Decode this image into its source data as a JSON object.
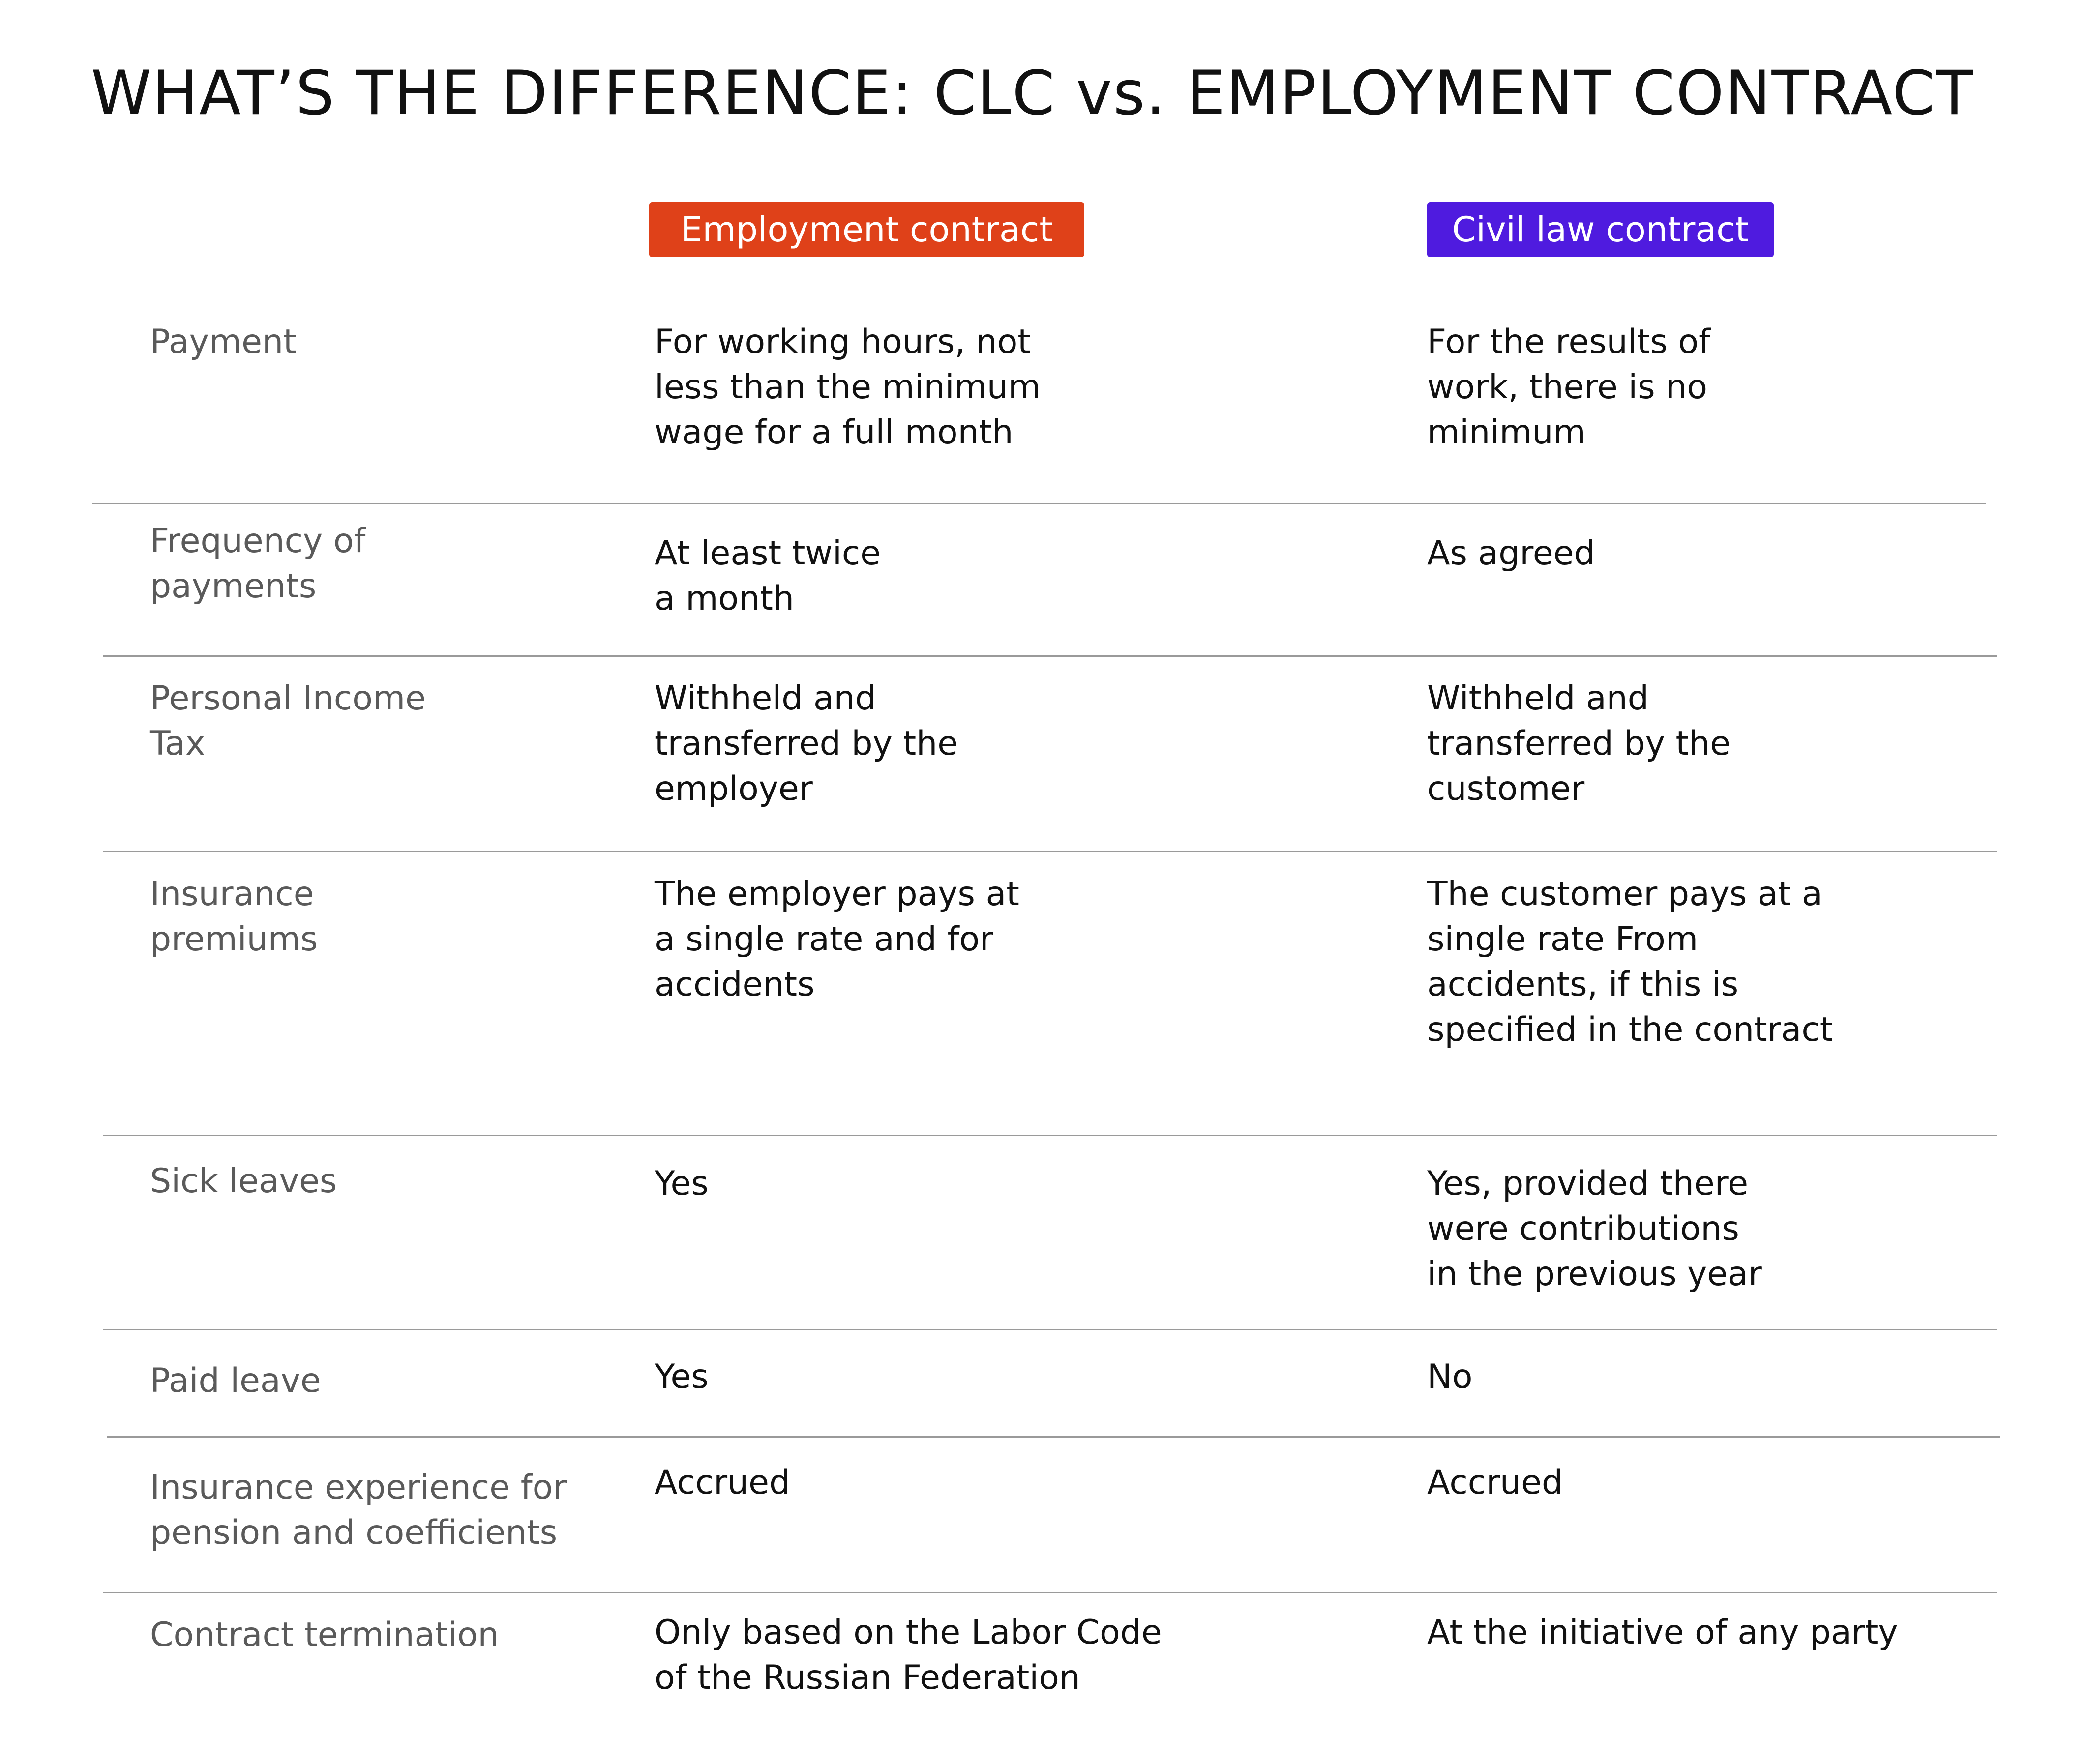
{
  "title": "WHAT’S THE DIFFERENCE: CLC vs. EMPLOYMENT CONTRACT",
  "columns": {
    "employment": {
      "label": "Employment contract",
      "color": "#DF4119"
    },
    "civil": {
      "label": "Civil law contract",
      "color": "#4F1BDF"
    }
  },
  "rows": [
    {
      "label": "Payment",
      "employment": "For working hours, not\nless than the minimum\nwage for a full month",
      "civil": "For the results of\nwork, there is no\nminimum"
    },
    {
      "label": "Frequency of\npayments",
      "employment": "At least twice\na month",
      "civil": "As agreed"
    },
    {
      "label": "Personal Income\nTax",
      "employment": "Withheld and\ntransferred by the\nemployer",
      "civil": "Withheld and\ntransferred by the\ncustomer"
    },
    {
      "label": "Insurance\npremiums",
      "employment": "The employer pays at\na single rate and for\naccidents",
      "civil": "The customer pays at a\nsingle rate From\naccidents, if this is\nspecified in the contract"
    },
    {
      "label": "Sick leaves",
      "employment": "Yes",
      "civil": "Yes, provided there\nwere contributions\nin the previous year"
    },
    {
      "label": "Paid leave",
      "employment": "Yes",
      "civil": "No"
    },
    {
      "label": "Insurance experience for\npension and coefficients",
      "employment": "Accrued",
      "civil": "Accrued"
    },
    {
      "label": "Contract termination",
      "employment": "Only based on the Labor Code\nof the Russian Federation",
      "civil": "At the initiative of any party"
    }
  ]
}
